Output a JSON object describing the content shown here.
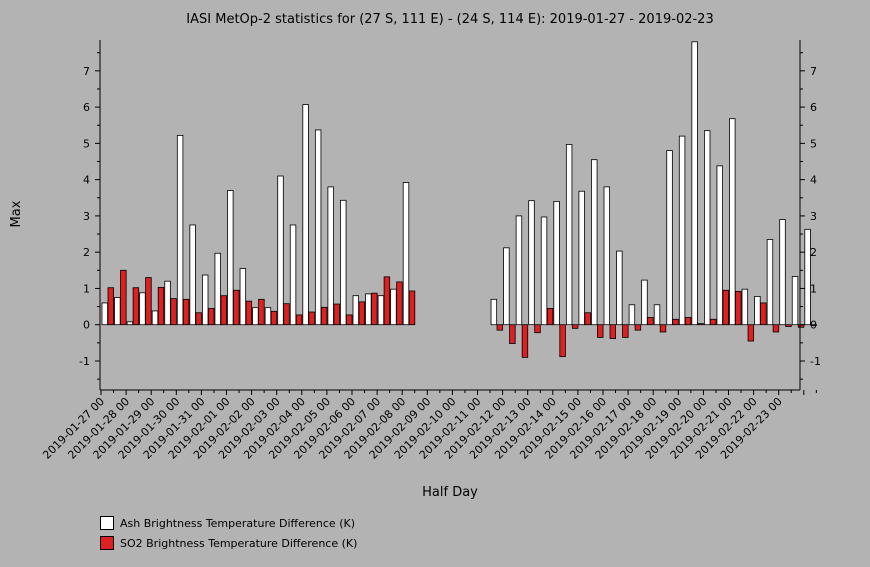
{
  "chart_data": {
    "type": "bar",
    "title": "IASI MetOp-2 statistics for (27 S, 111 E) - (24 S, 114 E): 2019-01-27 - 2019-02-23",
    "xlabel": "Half Day",
    "ylabel": "Max",
    "ylim": [
      -1.8,
      7.85
    ],
    "yticks": [
      -1,
      0,
      1,
      2,
      3,
      4,
      5,
      6,
      7
    ],
    "grid": false,
    "legend_position": "bottom-left",
    "tick_labels": [
      "2019-01-27 00",
      "2019-01-28 00",
      "2019-01-29 00",
      "2019-01-30 00",
      "2019-01-31 00",
      "2019-02-01 00",
      "2019-02-02 00",
      "2019-02-03 00",
      "2019-02-04 00",
      "2019-02-05 00",
      "2019-02-06 00",
      "2019-02-07 00",
      "2019-02-08 00",
      "2019-02-09 00",
      "2019-02-10 00",
      "2019-02-11 00",
      "2019-02-12 00",
      "2019-02-13 00",
      "2019-02-14 00",
      "2019-02-15 00",
      "2019-02-16 00",
      "2019-02-17 00",
      "2019-02-18 00",
      "2019-02-19 00",
      "2019-02-20 00",
      "2019-02-21 00",
      "2019-02-22 00",
      "2019-02-23 00"
    ],
    "series": [
      {
        "name": "Ash Brightness Temperature Difference (K)",
        "color": "#ffffff",
        "values": [
          0.6,
          0.75,
          0.08,
          0.88,
          0.38,
          1.2,
          5.22,
          2.75,
          1.37,
          1.97,
          3.7,
          1.55,
          0.47,
          0.47,
          4.1,
          2.75,
          6.07,
          5.37,
          3.8,
          3.43,
          0.8,
          0.85,
          0.8,
          0.98,
          3.92,
          null,
          null,
          null,
          null,
          null,
          null,
          0.7,
          2.12,
          3.0,
          3.42,
          2.97,
          3.4,
          4.97,
          3.68,
          4.55,
          3.8,
          2.03,
          0.55,
          1.23,
          0.55,
          4.8,
          5.2,
          7.8,
          5.35,
          4.38,
          5.68,
          0.98,
          0.78,
          2.35,
          2.9,
          1.33,
          2.63
        ]
      },
      {
        "name": "SO2 Brightness Temperature Difference (K)",
        "color": "#dd2020",
        "values": [
          1.02,
          1.5,
          1.02,
          1.3,
          1.03,
          0.72,
          0.7,
          0.33,
          0.45,
          0.8,
          0.95,
          0.65,
          0.7,
          0.37,
          0.58,
          0.27,
          0.35,
          0.48,
          0.57,
          0.27,
          0.63,
          0.87,
          1.32,
          1.18,
          0.93,
          null,
          null,
          null,
          null,
          null,
          null,
          -0.15,
          -0.52,
          -0.9,
          -0.22,
          0.45,
          -0.88,
          -0.1,
          0.33,
          -0.35,
          -0.38,
          -0.35,
          -0.15,
          0.2,
          -0.2,
          0.15,
          0.2,
          0.03,
          0.15,
          0.95,
          0.92,
          -0.45,
          0.6,
          -0.2,
          -0.05,
          -0.07,
          0.0
        ]
      }
    ]
  }
}
